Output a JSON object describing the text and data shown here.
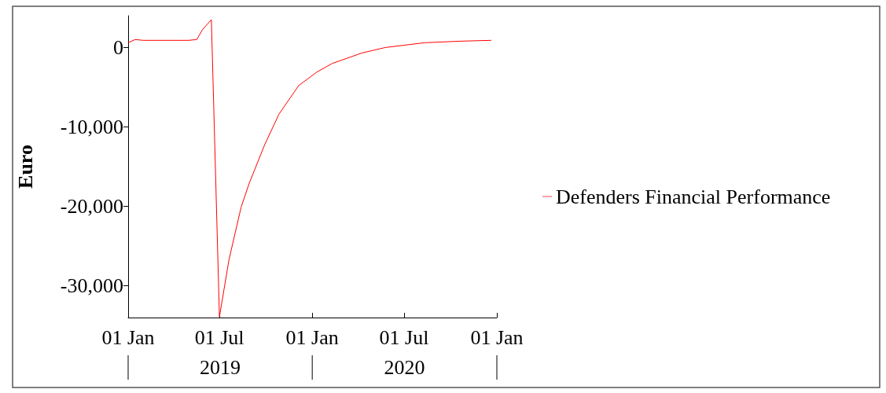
{
  "chart_data": {
    "type": "line",
    "ylabel": "Euro",
    "x": [
      "2019-01-01",
      "2019-01-15",
      "2019-01-31",
      "2019-05-01",
      "2019-05-17",
      "2019-05-29",
      "2019-06-15",
      "2019-07-01",
      "2019-07-20",
      "2019-08-13",
      "2019-08-29",
      "2019-09-29",
      "2019-10-27",
      "2019-12-05",
      "2020-01-10",
      "2020-02-10",
      "2020-03-08",
      "2020-04-08",
      "2020-05-25",
      "2020-08-11",
      "2020-10-23",
      "2020-12-21"
    ],
    "series": [
      {
        "name": "Defenders Financial Performance",
        "color": "#ff0000",
        "values": [
          600,
          1000,
          900,
          900,
          1000,
          2300,
          3500,
          -33900,
          -26700,
          -20100,
          -17100,
          -12200,
          -8400,
          -4800,
          -3100,
          -2000,
          -1400,
          -700,
          0,
          600,
          800,
          900
        ]
      }
    ],
    "xlim": [
      "2019-01-01",
      "2021-01-01"
    ],
    "xticks": [
      {
        "value": "2019-01-01",
        "label": "01 Jan"
      },
      {
        "value": "2019-07-01",
        "label": "01 Jul"
      },
      {
        "value": "2020-01-01",
        "label": "01 Jan"
      },
      {
        "value": "2020-07-01",
        "label": "01 Jul"
      },
      {
        "value": "2021-01-01",
        "label": "01 Jan"
      }
    ],
    "ylim": [
      -34000,
      4000
    ],
    "yticks": [
      0,
      {
        "value": -10000,
        "label": "-10,000"
      },
      {
        "value": -20000,
        "label": "-20,000"
      },
      {
        "value": -30000,
        "label": "-30,000"
      }
    ],
    "annotations": [
      "2019",
      "2020"
    ],
    "grid": false,
    "legend": "right",
    "marker": "none",
    "line_style": "solid"
  }
}
